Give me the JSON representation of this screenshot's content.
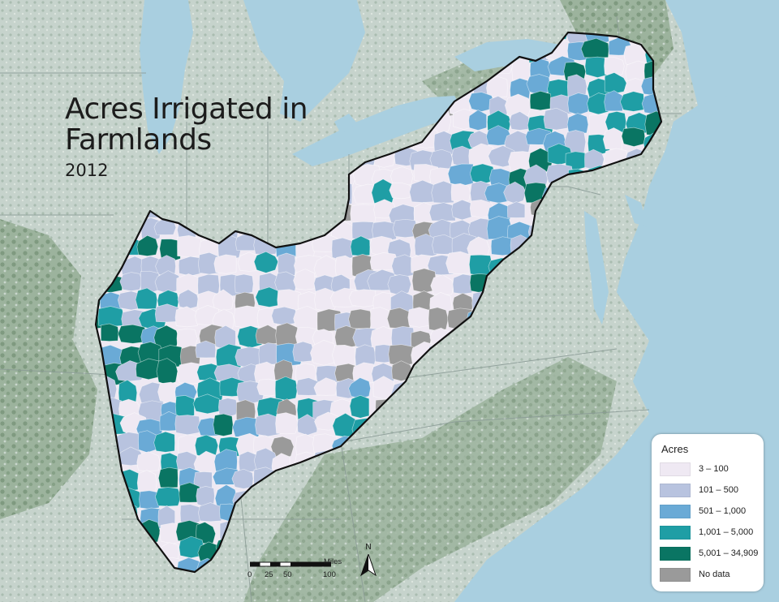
{
  "title": {
    "main": "Acres Irrigated in Farmlands",
    "year": "2012"
  },
  "legend": {
    "title": "Acres",
    "items": [
      {
        "label": "3 – 100",
        "color": "#efe9f3"
      },
      {
        "label": "101 – 500",
        "color": "#b8c3df"
      },
      {
        "label": "501 – 1,000",
        "color": "#6aaad6"
      },
      {
        "label": "1,001 – 5,000",
        "color": "#1f9ea5"
      },
      {
        "label": "5,001 – 34,909",
        "color": "#0a7563"
      },
      {
        "label": "No data",
        "color": "#9a9a9a"
      }
    ]
  },
  "scale": {
    "unit": "Miles",
    "ticks": [
      "0",
      "25",
      "50",
      "100"
    ]
  },
  "north_arrow": {
    "label": "N"
  },
  "colors": {
    "water": "#a9cfe0",
    "land": "#b7c8c0",
    "forest": "#7f9a80",
    "boundary": "#111111"
  }
}
